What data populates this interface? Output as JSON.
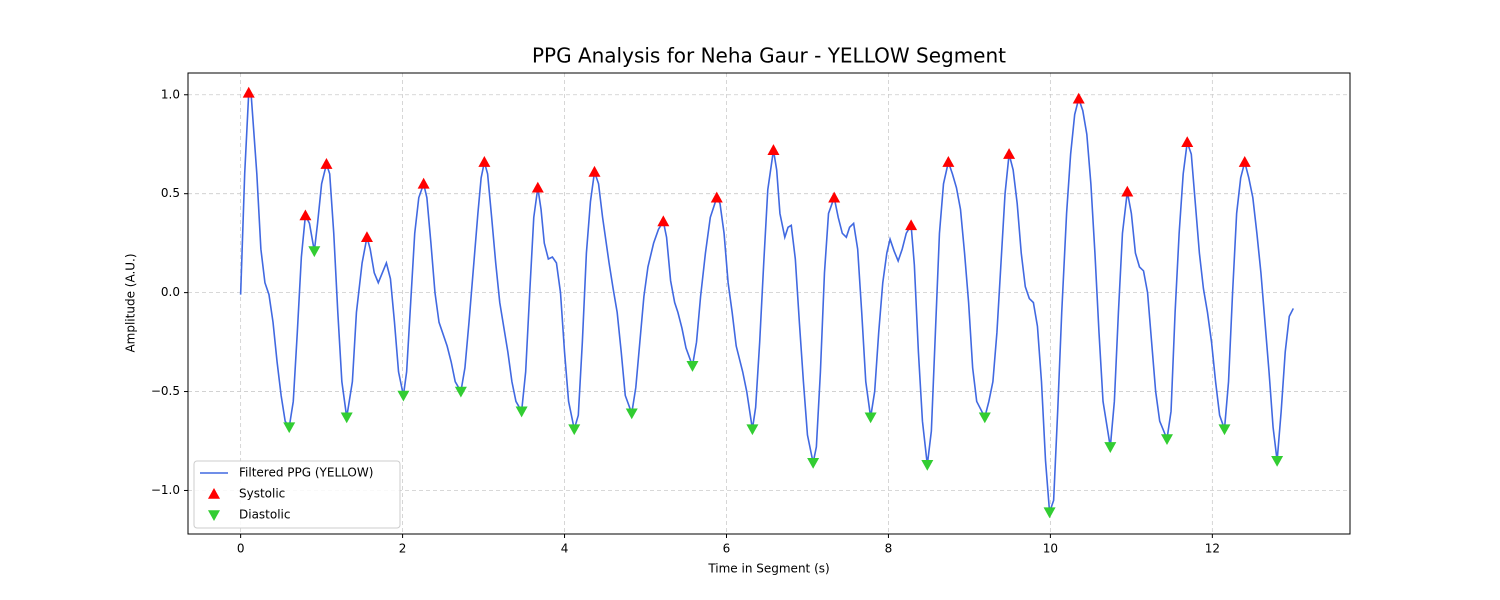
{
  "chart_data": {
    "type": "line",
    "title": "PPG Analysis for Neha Gaur - YELLOW Segment",
    "x_label": "Time in Segment (s)",
    "y_label": "Amplitude (A.U.)",
    "xlim": [
      -0.65,
      13.7
    ],
    "ylim": [
      -1.22,
      1.11
    ],
    "xticks": [
      0,
      2,
      4,
      6,
      8,
      10,
      12
    ],
    "yticks": [
      {
        "value": -1,
        "label": "−1.0"
      },
      {
        "value": -0.5,
        "label": "−0.5"
      },
      {
        "value": 0,
        "label": "0.0"
      },
      0.5,
      {
        "value": 1,
        "label": "1.0"
      }
    ],
    "grid": true,
    "legend": "lower left",
    "series": [
      {
        "name": "Filtered PPG (YELLOW)",
        "type": "line",
        "color": "#4169e1",
        "x": [
          0,
          0.05,
          0.1,
          0.13,
          0.2,
          0.25,
          0.3,
          0.35,
          0.4,
          0.45,
          0.5,
          0.55,
          0.6,
          0.65,
          0.7,
          0.75,
          0.8,
          0.85,
          0.91,
          0.95,
          1.0,
          1.06,
          1.1,
          1.15,
          1.2,
          1.25,
          1.31,
          1.38,
          1.43,
          1.5,
          1.56,
          1.6,
          1.65,
          1.7,
          1.75,
          1.8,
          1.85,
          1.9,
          1.95,
          2.01,
          2.05,
          2.1,
          2.15,
          2.2,
          2.26,
          2.3,
          2.35,
          2.4,
          2.45,
          2.55,
          2.6,
          2.65,
          2.72,
          2.77,
          2.82,
          2.88,
          2.93,
          2.97,
          3.01,
          3.05,
          3.1,
          3.15,
          3.2,
          3.3,
          3.35,
          3.4,
          3.47,
          3.52,
          3.57,
          3.62,
          3.67,
          3.71,
          3.75,
          3.8,
          3.85,
          3.9,
          3.95,
          4.0,
          4.05,
          4.12,
          4.17,
          4.22,
          4.27,
          4.32,
          4.37,
          4.42,
          4.47,
          4.55,
          4.6,
          4.65,
          4.7,
          4.75,
          4.83,
          4.88,
          4.93,
          4.98,
          5.03,
          5.1,
          5.16,
          5.22,
          5.26,
          5.31,
          5.36,
          5.4,
          5.45,
          5.5,
          5.58,
          5.63,
          5.68,
          5.74,
          5.8,
          5.88,
          5.92,
          5.97,
          6.02,
          6.07,
          6.12,
          6.2,
          6.25,
          6.32,
          6.36,
          6.41,
          6.46,
          6.51,
          6.58,
          6.62,
          6.66,
          6.72,
          6.76,
          6.8,
          6.85,
          6.9,
          6.95,
          7.0,
          7.07,
          7.11,
          7.16,
          7.21,
          7.26,
          7.33,
          7.38,
          7.43,
          7.48,
          7.52,
          7.57,
          7.62,
          7.67,
          7.72,
          7.78,
          7.83,
          7.88,
          7.93,
          7.98,
          8.02,
          8.07,
          8.12,
          8.17,
          8.22,
          8.28,
          8.32,
          8.37,
          8.42,
          8.48,
          8.53,
          8.58,
          8.63,
          8.68,
          8.74,
          8.79,
          8.84,
          8.89,
          8.94,
          8.99,
          9.04,
          9.09,
          9.19,
          9.24,
          9.29,
          9.34,
          9.39,
          9.44,
          9.49,
          9.54,
          9.59,
          9.64,
          9.69,
          9.74,
          9.79,
          9.84,
          9.89,
          9.94,
          9.99,
          10.04,
          10.09,
          10.14,
          10.2,
          10.25,
          10.3,
          10.35,
          10.4,
          10.45,
          10.5,
          10.55,
          10.6,
          10.65,
          10.74,
          10.79,
          10.84,
          10.89,
          10.95,
          11.0,
          11.05,
          11.1,
          11.15,
          11.2,
          11.25,
          11.3,
          11.35,
          11.44,
          11.49,
          11.54,
          11.59,
          11.64,
          11.69,
          11.74,
          11.79,
          11.84,
          11.89,
          11.94,
          11.99,
          12.04,
          12.09,
          12.15,
          12.2,
          12.25,
          12.3,
          12.35,
          12.4,
          12.45,
          12.5,
          12.55,
          12.6,
          12.65,
          12.7,
          12.75,
          12.8,
          12.85,
          12.9,
          12.95,
          13.0
        ],
        "values": [
          -0.01,
          0.6,
          1.01,
          1.0,
          0.6,
          0.22,
          0.05,
          -0.01,
          -0.15,
          -0.35,
          -0.52,
          -0.65,
          -0.68,
          -0.55,
          -0.2,
          0.18,
          0.39,
          0.35,
          0.21,
          0.35,
          0.55,
          0.65,
          0.6,
          0.3,
          -0.1,
          -0.45,
          -0.63,
          -0.45,
          -0.1,
          0.15,
          0.28,
          0.22,
          0.1,
          0.05,
          0.1,
          0.15,
          0.07,
          -0.15,
          -0.4,
          -0.52,
          -0.4,
          -0.05,
          0.3,
          0.48,
          0.55,
          0.48,
          0.25,
          0.0,
          -0.15,
          -0.27,
          -0.35,
          -0.45,
          -0.5,
          -0.38,
          -0.15,
          0.15,
          0.4,
          0.58,
          0.66,
          0.6,
          0.38,
          0.15,
          -0.05,
          -0.3,
          -0.45,
          -0.55,
          -0.6,
          -0.4,
          0.0,
          0.38,
          0.53,
          0.42,
          0.25,
          0.17,
          0.18,
          0.15,
          0.0,
          -0.3,
          -0.55,
          -0.69,
          -0.62,
          -0.25,
          0.2,
          0.46,
          0.61,
          0.55,
          0.38,
          0.15,
          0.02,
          -0.1,
          -0.3,
          -0.52,
          -0.61,
          -0.48,
          -0.25,
          -0.02,
          0.13,
          0.25,
          0.32,
          0.36,
          0.28,
          0.06,
          -0.05,
          -0.1,
          -0.18,
          -0.28,
          -0.37,
          -0.25,
          -0.02,
          0.2,
          0.38,
          0.48,
          0.45,
          0.3,
          0.05,
          -0.1,
          -0.27,
          -0.4,
          -0.5,
          -0.69,
          -0.58,
          -0.25,
          0.15,
          0.52,
          0.72,
          0.62,
          0.4,
          0.28,
          0.33,
          0.34,
          0.17,
          -0.15,
          -0.45,
          -0.72,
          -0.86,
          -0.78,
          -0.4,
          0.1,
          0.4,
          0.48,
          0.38,
          0.3,
          0.28,
          0.33,
          0.35,
          0.22,
          -0.1,
          -0.45,
          -0.63,
          -0.5,
          -0.2,
          0.05,
          0.2,
          0.27,
          0.21,
          0.16,
          0.22,
          0.3,
          0.34,
          0.14,
          -0.3,
          -0.65,
          -0.87,
          -0.7,
          -0.2,
          0.3,
          0.55,
          0.66,
          0.6,
          0.53,
          0.42,
          0.2,
          -0.05,
          -0.38,
          -0.55,
          -0.63,
          -0.55,
          -0.45,
          -0.2,
          0.15,
          0.5,
          0.7,
          0.62,
          0.45,
          0.2,
          0.03,
          -0.03,
          -0.05,
          -0.17,
          -0.45,
          -0.85,
          -1.11,
          -1.05,
          -0.6,
          -0.1,
          0.4,
          0.7,
          0.9,
          0.98,
          0.92,
          0.8,
          0.55,
          0.2,
          -0.2,
          -0.55,
          -0.78,
          -0.55,
          -0.1,
          0.3,
          0.51,
          0.4,
          0.2,
          0.13,
          0.11,
          0.0,
          -0.25,
          -0.5,
          -0.65,
          -0.74,
          -0.6,
          -0.1,
          0.3,
          0.6,
          0.76,
          0.7,
          0.45,
          0.2,
          0.02,
          -0.1,
          -0.25,
          -0.45,
          -0.62,
          -0.69,
          -0.45,
          0.0,
          0.4,
          0.58,
          0.66,
          0.58,
          0.48,
          0.3,
          0.1,
          -0.15,
          -0.4,
          -0.68,
          -0.85,
          -0.6,
          -0.3,
          -0.12,
          -0.08
        ]
      },
      {
        "name": "Systolic",
        "type": "scatter",
        "marker": "triangle-up",
        "color": "#ff0000",
        "x": [
          0.1,
          0.8,
          1.06,
          1.56,
          2.26,
          3.01,
          3.67,
          4.37,
          5.22,
          5.88,
          6.58,
          7.33,
          8.28,
          8.74,
          9.49,
          10.35,
          10.95,
          11.69,
          12.4
        ],
        "values": [
          1.01,
          0.39,
          0.65,
          0.28,
          0.55,
          0.66,
          0.53,
          0.61,
          0.36,
          0.48,
          0.72,
          0.48,
          0.34,
          0.66,
          0.7,
          0.98,
          0.51,
          0.76,
          0.66
        ]
      },
      {
        "name": "Diastolic",
        "type": "scatter",
        "marker": "triangle-down",
        "color": "#32cd32",
        "x": [
          0.6,
          0.91,
          1.31,
          2.01,
          2.72,
          3.47,
          4.12,
          4.83,
          5.58,
          6.32,
          7.07,
          7.78,
          8.48,
          9.19,
          9.99,
          10.74,
          11.44,
          12.15,
          12.8
        ],
        "values": [
          -0.68,
          0.21,
          -0.63,
          -0.52,
          -0.5,
          -0.6,
          -0.69,
          -0.61,
          -0.37,
          -0.69,
          -0.86,
          -0.63,
          -0.87,
          -0.63,
          -1.11,
          -0.78,
          -0.74,
          -0.69,
          -0.85
        ]
      }
    ]
  }
}
